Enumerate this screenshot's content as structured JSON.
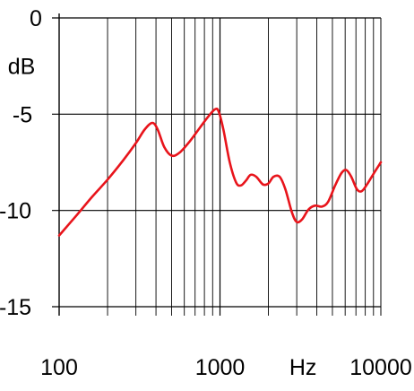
{
  "chart_data": {
    "type": "line",
    "title": "",
    "x_scale": "log",
    "xlim": [
      100,
      10000
    ],
    "ylim": [
      -15,
      0
    ],
    "grid": true,
    "y_unit_label": "dB",
    "x_unit_label": "Hz",
    "x_tick_labels": [
      {
        "value": 100,
        "label": "100"
      },
      {
        "value": 1000,
        "label": "1000"
      },
      {
        "value": 10000,
        "label": "10000"
      }
    ],
    "y_tick_labels": [
      {
        "value": 0,
        "label": "0"
      },
      {
        "value": -5,
        "label": "-5"
      },
      {
        "value": -10,
        "label": "-10"
      },
      {
        "value": -15,
        "label": "-15"
      }
    ],
    "series": [
      {
        "color": "#e8141b",
        "points": [
          [
            100,
            -11.3
          ],
          [
            130,
            -10.2
          ],
          [
            160,
            -9.3
          ],
          [
            200,
            -8.4
          ],
          [
            250,
            -7.4
          ],
          [
            300,
            -6.5
          ],
          [
            340,
            -5.8
          ],
          [
            380,
            -5.45
          ],
          [
            410,
            -5.8
          ],
          [
            450,
            -6.7
          ],
          [
            500,
            -7.15
          ],
          [
            560,
            -7.0
          ],
          [
            650,
            -6.4
          ],
          [
            750,
            -5.7
          ],
          [
            850,
            -5.1
          ],
          [
            930,
            -4.75
          ],
          [
            980,
            -4.85
          ],
          [
            1050,
            -5.8
          ],
          [
            1150,
            -7.5
          ],
          [
            1260,
            -8.55
          ],
          [
            1350,
            -8.7
          ],
          [
            1450,
            -8.45
          ],
          [
            1550,
            -8.15
          ],
          [
            1680,
            -8.25
          ],
          [
            1850,
            -8.65
          ],
          [
            2000,
            -8.6
          ],
          [
            2150,
            -8.25
          ],
          [
            2350,
            -8.25
          ],
          [
            2550,
            -8.9
          ],
          [
            2800,
            -10.1
          ],
          [
            3000,
            -10.6
          ],
          [
            3250,
            -10.45
          ],
          [
            3550,
            -9.95
          ],
          [
            3900,
            -9.75
          ],
          [
            4300,
            -9.8
          ],
          [
            4700,
            -9.55
          ],
          [
            5200,
            -8.7
          ],
          [
            5700,
            -8.05
          ],
          [
            6100,
            -7.9
          ],
          [
            6550,
            -8.25
          ],
          [
            7100,
            -8.9
          ],
          [
            7600,
            -9.0
          ],
          [
            8200,
            -8.65
          ],
          [
            9000,
            -8.1
          ],
          [
            10000,
            -7.5
          ]
        ]
      }
    ]
  }
}
